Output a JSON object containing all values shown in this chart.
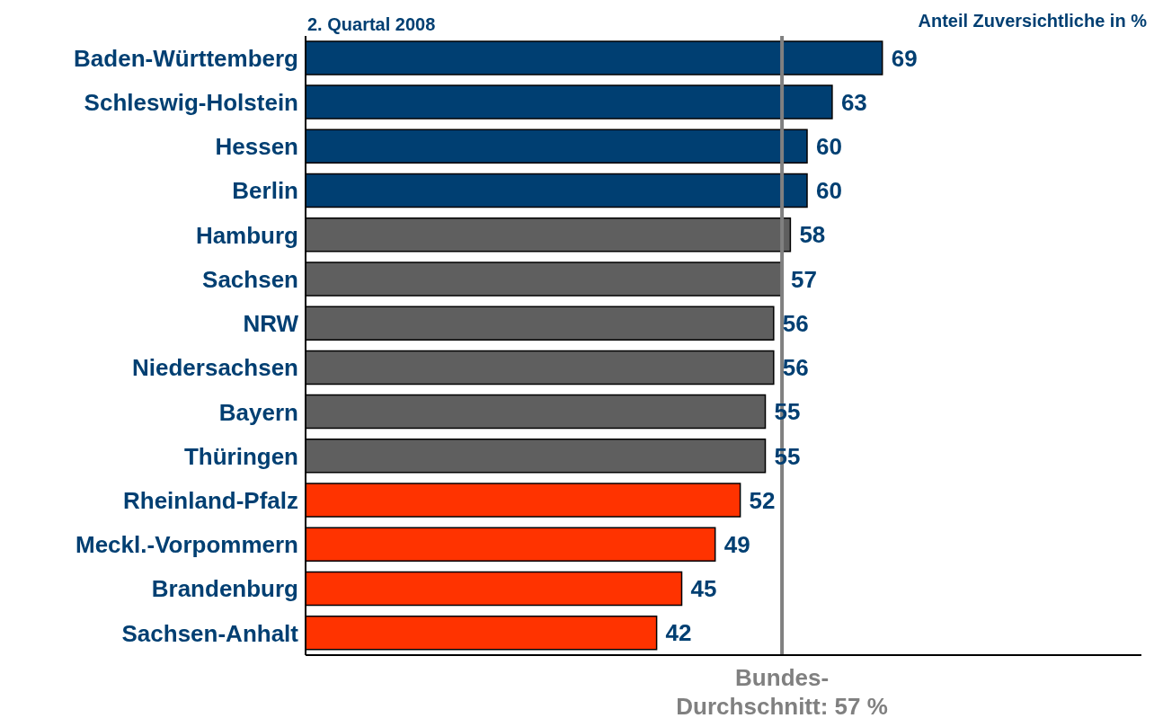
{
  "chart_data": {
    "type": "bar",
    "orientation": "horizontal",
    "title": "2. Quartal 2008",
    "xlabel": "Anteil Zuversichtliche in %",
    "categories": [
      "Baden-Württemberg",
      "Schleswig-Holstein",
      "Hessen",
      "Berlin",
      "Hamburg",
      "Sachsen",
      "NRW",
      "Niedersachsen",
      "Bayern",
      "Thüringen",
      "Rheinland-Pfalz",
      "Meckl.-Vorpommern",
      "Brandenburg",
      "Sachsen-Anhalt"
    ],
    "values": [
      69,
      63,
      60,
      60,
      58,
      57,
      56,
      56,
      55,
      55,
      52,
      49,
      45,
      42
    ],
    "colors": [
      "#003f72",
      "#003f72",
      "#003f72",
      "#003f72",
      "#5f5f5f",
      "#5f5f5f",
      "#5f5f5f",
      "#5f5f5f",
      "#5f5f5f",
      "#5f5f5f",
      "#ff3300",
      "#ff3300",
      "#ff3300",
      "#ff3300"
    ],
    "xlim": [
      0,
      100
    ],
    "ref_lines": [
      {
        "axis": "x",
        "value": 57,
        "label": "Bundes-\nDurchschnitt: 57 %",
        "color": "#808080"
      }
    ],
    "data_labels": true,
    "tick_labels": "y",
    "grid": false,
    "legend": false
  }
}
